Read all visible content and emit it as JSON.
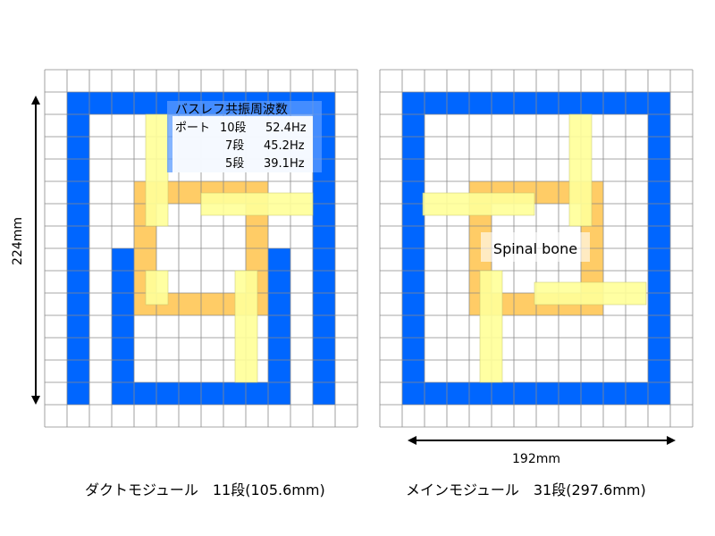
{
  "colors": {
    "wall": "#0066ff",
    "spine": "#ffcc66",
    "board": "#ffff99",
    "grid": "#8a8a8a",
    "label_band": "#5b9bff"
  },
  "left_module": {
    "caption": "ダクトモジュール　11段(105.6mm)",
    "resonance_box": {
      "title": "バスレフ共振周波数",
      "port_label": "ポート",
      "rows": [
        {
          "stages": "10段",
          "freq": "52.4Hz"
        },
        {
          "stages": "7段",
          "freq": "45.2Hz"
        },
        {
          "stages": "5段",
          "freq": "39.1Hz"
        }
      ]
    }
  },
  "right_module": {
    "caption": "メインモジュール　31段(297.6mm)",
    "spine_label": "Spinal bone"
  },
  "dimensions": {
    "height": "224mm",
    "width": "192mm"
  }
}
